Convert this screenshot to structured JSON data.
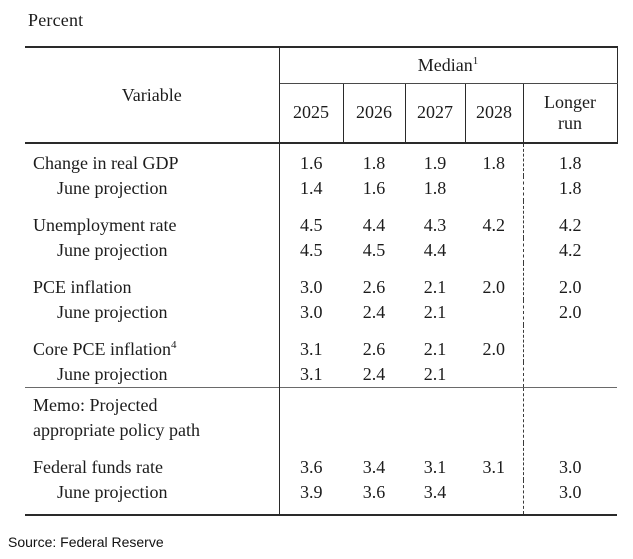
{
  "unit_label": "Percent",
  "source_note": "Source: Federal Reserve",
  "colors": {
    "text": "#1c1c1c",
    "rule_thick": "#2a2a2a",
    "rule_thin": "#4a4a4a",
    "rule_memo": "#6a6a6a",
    "background": "#ffffff"
  },
  "table": {
    "variable_header": "Variable",
    "median_header": {
      "label": "Median",
      "footnote": "1"
    },
    "year_headers": [
      "2025",
      "2026",
      "2027",
      "2028"
    ],
    "longer_run_header": "Longer run",
    "rows": [
      {
        "label": "Change in real GDP",
        "group_start": true,
        "values": [
          "1.6",
          "1.8",
          "1.9",
          "1.8",
          "1.8"
        ]
      },
      {
        "label": "June projection",
        "indent": true,
        "values": [
          "1.4",
          "1.6",
          "1.8",
          "",
          "1.8"
        ]
      },
      {
        "label": "Unemployment rate",
        "group_start": true,
        "values": [
          "4.5",
          "4.4",
          "4.3",
          "4.2",
          "4.2"
        ]
      },
      {
        "label": "June projection",
        "indent": true,
        "values": [
          "4.5",
          "4.5",
          "4.4",
          "",
          "4.2"
        ]
      },
      {
        "label": "PCE inflation",
        "group_start": true,
        "values": [
          "3.0",
          "2.6",
          "2.1",
          "2.0",
          "2.0"
        ]
      },
      {
        "label": "June projection",
        "indent": true,
        "values": [
          "3.0",
          "2.4",
          "2.1",
          "",
          "2.0"
        ]
      },
      {
        "label": "Core PCE inflation",
        "footnote": "4",
        "group_start": true,
        "values": [
          "3.1",
          "2.6",
          "2.1",
          "2.0",
          ""
        ]
      },
      {
        "label": "June projection",
        "indent": true,
        "values": [
          "3.1",
          "2.4",
          "2.1",
          "",
          ""
        ]
      },
      {
        "label": "Memo: Projected\nappropriate policy path",
        "memo": true,
        "values": [
          "",
          "",
          "",
          "",
          ""
        ]
      },
      {
        "label": "Federal funds rate",
        "group_start": true,
        "values": [
          "3.6",
          "3.4",
          "3.1",
          "3.1",
          "3.0"
        ]
      },
      {
        "label": "June projection",
        "indent": true,
        "last": true,
        "values": [
          "3.9",
          "3.6",
          "3.4",
          "",
          "3.0"
        ]
      }
    ]
  }
}
